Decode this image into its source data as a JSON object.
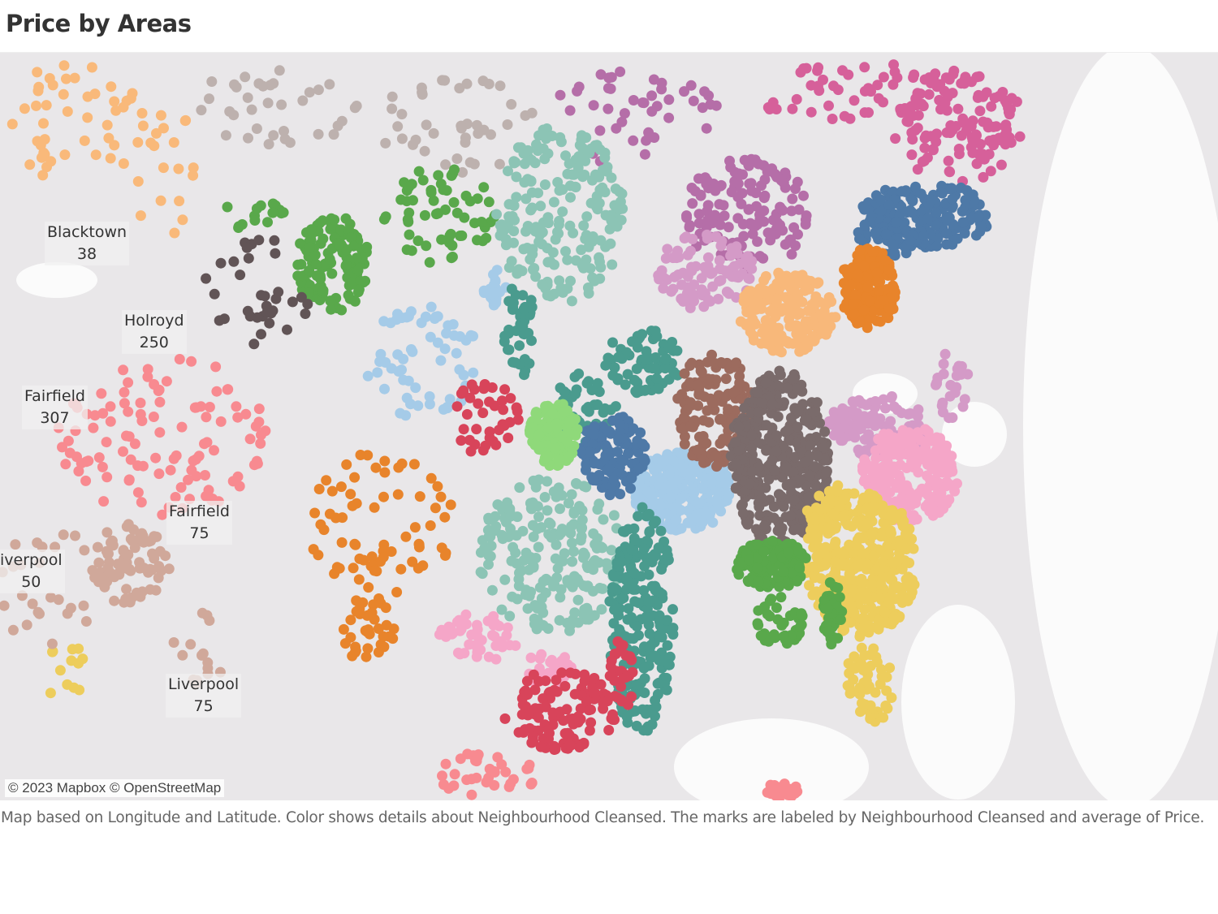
{
  "title": "Price by Areas",
  "attribution": "© 2023 Mapbox © OpenStreetMap",
  "caption": "Map based on Longitude and Latitude.  Color shows details about Neighbourhood Cleansed.  The marks are labeled by Neighbourhood Cleansed and average of Price.",
  "labels": [
    {
      "name": "Blacktown",
      "value": "38"
    },
    {
      "name": "Holroyd",
      "value": "250"
    },
    {
      "name": "Fairfield",
      "value": "307"
    },
    {
      "name": "Fairfield",
      "value": "75"
    },
    {
      "name": "iverpool",
      "value": "50"
    },
    {
      "name": "Liverpool",
      "value": "75"
    }
  ],
  "colors": {
    "orange_light": "#f9b97a",
    "tan": "#bdb1ae",
    "purple": "#b56ea8",
    "magenta": "#d6609a",
    "green": "#59a84b",
    "dark_gray": "#615456",
    "teal_light": "#8cc4b5",
    "teal": "#4a9b8e",
    "sky": "#a5cbe8",
    "blue": "#4e79a7",
    "pink_light": "#f5a6c8",
    "lilac": "#d49ac7",
    "orange": "#e8842b",
    "peach": "#f8b87a",
    "brown": "#9c6b5e",
    "gray_brown": "#7a6b6b",
    "yellow": "#edcd5c",
    "red": "#d8445a",
    "salmon": "#f88a90",
    "light_green": "#8fd97a",
    "rose_tan": "#d0a89a"
  }
}
